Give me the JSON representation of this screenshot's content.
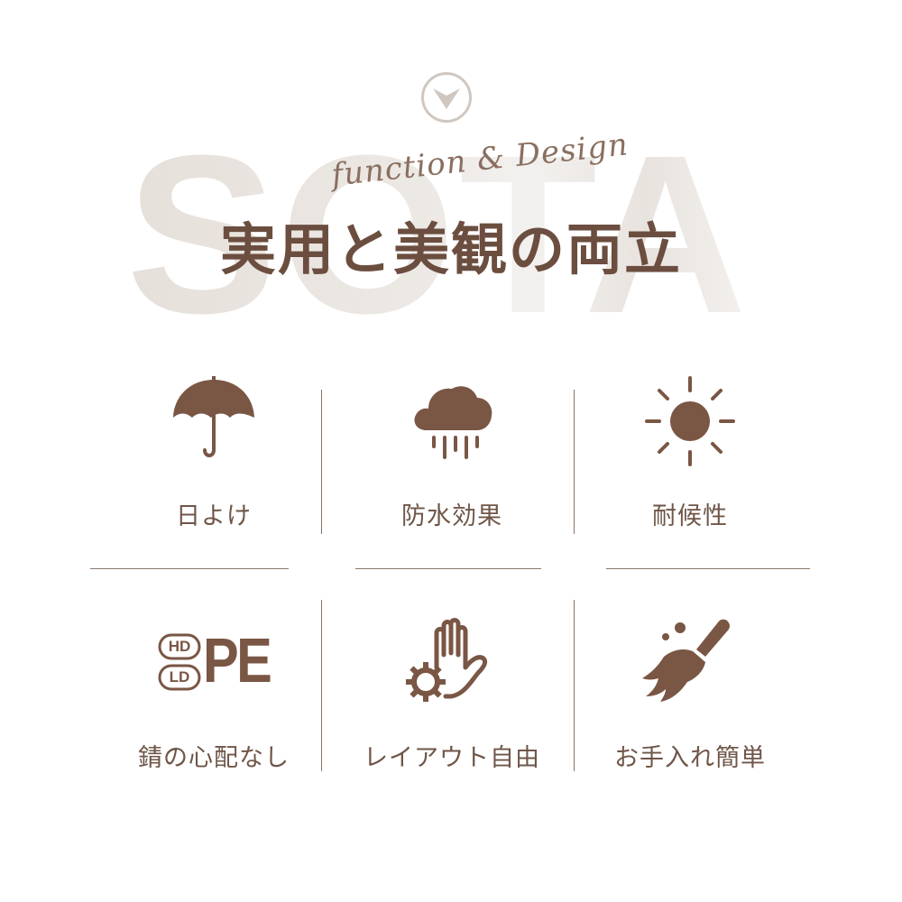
{
  "header": {
    "watermark": "SOTA",
    "script_subtitle": "function & Design",
    "title": "実用と美観の両立"
  },
  "features": [
    {
      "label": "日よけ",
      "icon": "umbrella-icon"
    },
    {
      "label": "防水効果",
      "icon": "rain-cloud-icon"
    },
    {
      "label": "耐候性",
      "icon": "sun-icon"
    },
    {
      "label": "錆の心配なし",
      "icon": "hdpe-ldpe-icon",
      "badge_top": "HD",
      "badge_bottom": "LD",
      "badge_main": "PE"
    },
    {
      "label": "レイアウト自由",
      "icon": "hand-gear-icon"
    },
    {
      "label": "お手入れ簡単",
      "icon": "broom-icon"
    }
  ],
  "colors": {
    "accent": "#7a5644",
    "text": "#6f5648",
    "divider": "#8a7568",
    "watermark": "#e9e4df"
  }
}
